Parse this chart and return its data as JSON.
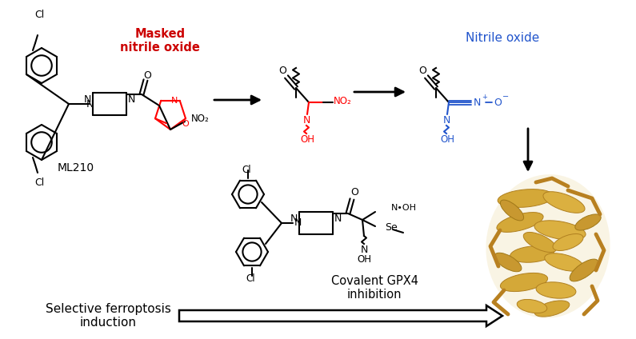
{
  "background_color": "#ffffff",
  "text_masked_nitrile_oxide": "Masked\nnitrile oxide",
  "text_masked_color": "#cc0000",
  "text_nitrile_oxide": "Nitrile oxide",
  "text_nitrile_color": "#2255cc",
  "text_ml210": "ML210",
  "text_covalent": "Covalent GPX4\ninhibition",
  "text_selective": "Selective ferroptosis\ninduction",
  "membrane_bead_color": "#c8b89a",
  "membrane_bead_edge": "#a09070",
  "membrane_tail_color": "#b8a880"
}
